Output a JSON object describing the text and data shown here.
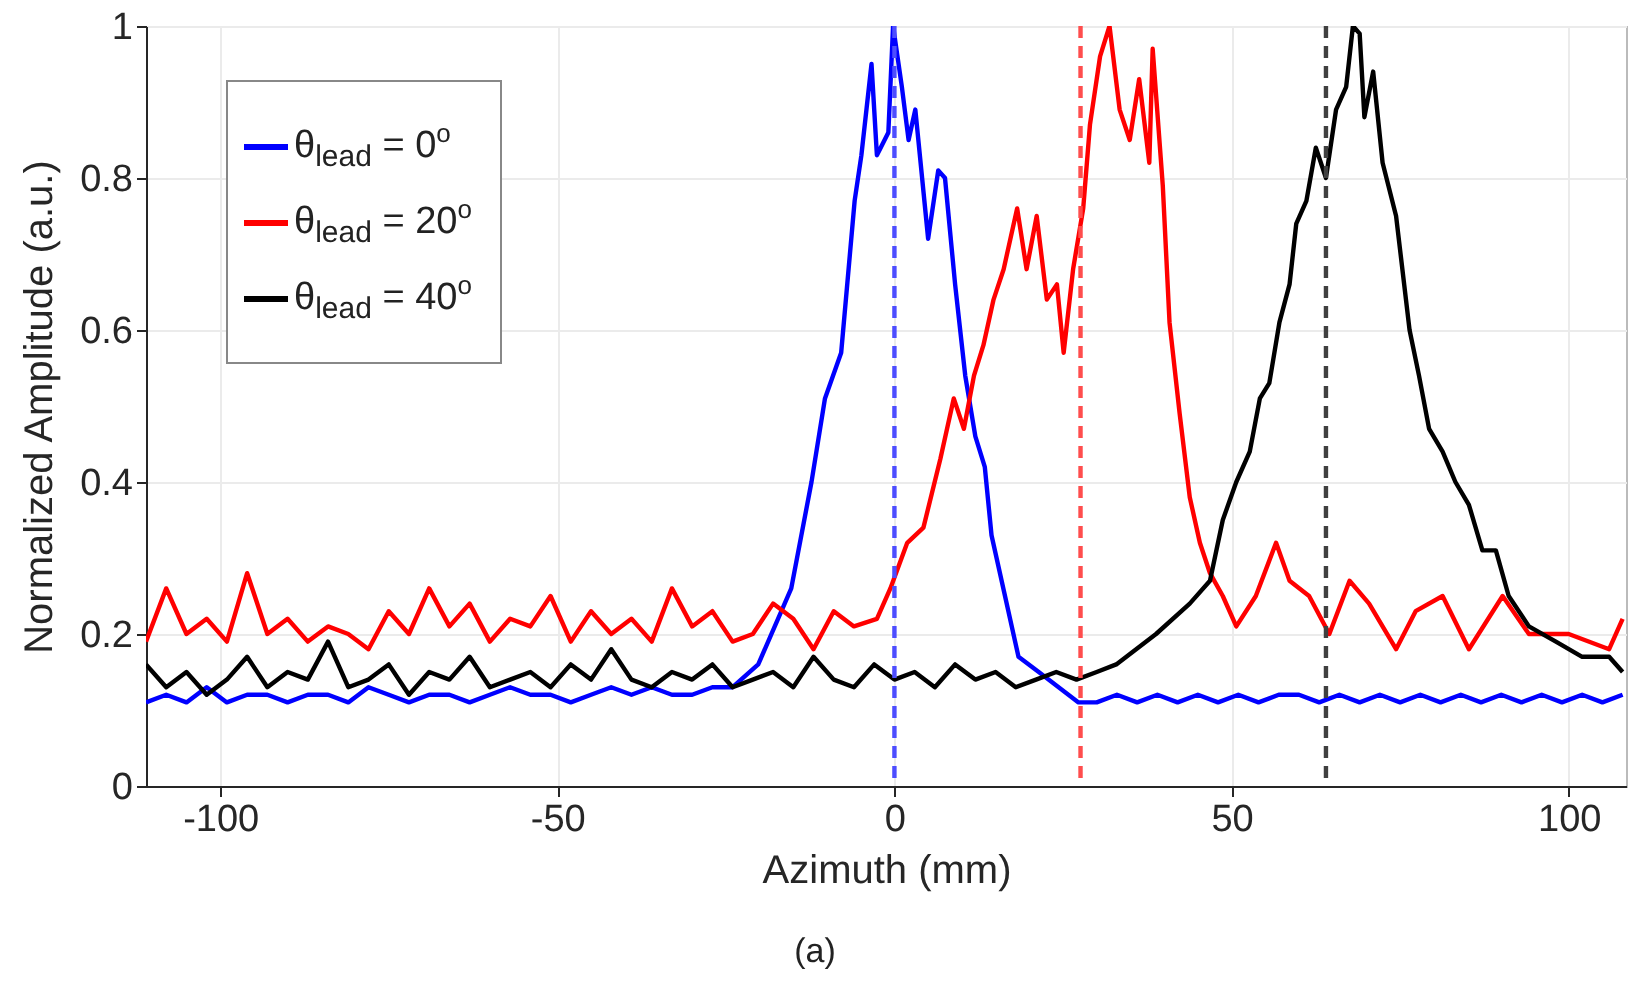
{
  "chart_data": {
    "type": "line",
    "xlabel": "Azimuth (mm)",
    "ylabel": "Normalized Amplitude (a.u.)",
    "annotations": [
      "(a)"
    ],
    "xlim": [
      -111,
      108.5
    ],
    "ylim": [
      0,
      1
    ],
    "xticks": [
      -100,
      -50,
      0,
      50,
      100
    ],
    "yticks": [
      0,
      0.2,
      0.4,
      0.6,
      0.8,
      1
    ],
    "grid": true,
    "legend": "top left",
    "line_style": "solid",
    "series": [
      {
        "name": "θ$_{lead}$ = 0$^{o}$",
        "color": "#0000ff",
        "x": [
          -111,
          -108,
          -105,
          -102,
          -99,
          -96,
          -93,
          -90,
          -87,
          -84,
          -81,
          -78,
          -75,
          -72,
          -69,
          -66,
          -63,
          -60,
          -57,
          -54,
          -51,
          -48,
          -45,
          -42,
          -39,
          -36,
          -33,
          -30,
          -27,
          -24,
          -20.2,
          -15.3,
          -12.3,
          -10.3,
          -7.9,
          -5.9,
          -4.9,
          -3.4,
          -2.6,
          -0.9,
          -0.2,
          1.1,
          2.1,
          3.1,
          5,
          6.5,
          7.5,
          9,
          10.5,
          12,
          13.4,
          14.4,
          16.4,
          18.4,
          21.4,
          27.3,
          30,
          33,
          36,
          39,
          42,
          45,
          48,
          51,
          54,
          57,
          60,
          63,
          66,
          69,
          72,
          75,
          78,
          81,
          84,
          87,
          90,
          93,
          96,
          99,
          102,
          105,
          108
        ],
        "values": [
          0.11,
          0.12,
          0.11,
          0.13,
          0.11,
          0.12,
          0.12,
          0.11,
          0.12,
          0.12,
          0.11,
          0.13,
          0.12,
          0.11,
          0.12,
          0.12,
          0.11,
          0.12,
          0.13,
          0.12,
          0.12,
          0.11,
          0.12,
          0.13,
          0.12,
          0.13,
          0.12,
          0.12,
          0.13,
          0.13,
          0.16,
          0.26,
          0.4,
          0.51,
          0.57,
          0.77,
          0.83,
          0.95,
          0.83,
          0.86,
          1,
          0.92,
          0.85,
          0.89,
          0.72,
          0.81,
          0.8,
          0.66,
          0.54,
          0.46,
          0.42,
          0.33,
          0.25,
          0.17,
          0.15,
          0.11,
          0.11,
          0.12,
          0.11,
          0.12,
          0.11,
          0.12,
          0.11,
          0.12,
          0.11,
          0.12,
          0.12,
          0.11,
          0.12,
          0.11,
          0.12,
          0.11,
          0.12,
          0.11,
          0.12,
          0.11,
          0.12,
          0.11,
          0.12,
          0.11,
          0.12,
          0.11,
          0.12
        ]
      },
      {
        "name": "θ$_{lead}$ = 20$^{o}$",
        "color": "#ff0000",
        "x": [
          -111,
          -108,
          -105,
          -102,
          -99,
          -96,
          -93,
          -90,
          -87,
          -84,
          -81,
          -78,
          -75,
          -72,
          -69,
          -66,
          -63,
          -60,
          -57,
          -54,
          -51,
          -48,
          -45,
          -42,
          -39,
          -36,
          -33,
          -30,
          -27,
          -24,
          -21,
          -18,
          -15,
          -12,
          -9,
          -6,
          -2.6,
          -0.6,
          1.9,
          4.3,
          6.8,
          8.8,
          10.3,
          11.8,
          13.2,
          14.7,
          16.2,
          18.2,
          19.6,
          21.1,
          22.6,
          24.1,
          25.1,
          26.5,
          28,
          29,
          30.5,
          31.9,
          33.4,
          34.9,
          36.3,
          37.8,
          38.3,
          39.8,
          40.8,
          42.3,
          43.8,
          45.3,
          46.8,
          48.7,
          50.7,
          53.6,
          56.6,
          58.6,
          61.5,
          64.5,
          67.5,
          70.4,
          74.4,
          77.3,
          81.3,
          85.2,
          90.2,
          94.1,
          100,
          106,
          108
        ],
        "values": [
          0.19,
          0.26,
          0.2,
          0.22,
          0.19,
          0.28,
          0.2,
          0.22,
          0.19,
          0.21,
          0.2,
          0.18,
          0.23,
          0.2,
          0.26,
          0.21,
          0.24,
          0.19,
          0.22,
          0.21,
          0.25,
          0.19,
          0.23,
          0.2,
          0.22,
          0.19,
          0.26,
          0.21,
          0.23,
          0.19,
          0.2,
          0.24,
          0.22,
          0.18,
          0.23,
          0.21,
          0.22,
          0.26,
          0.32,
          0.34,
          0.43,
          0.51,
          0.47,
          0.54,
          0.58,
          0.64,
          0.68,
          0.76,
          0.68,
          0.75,
          0.64,
          0.66,
          0.57,
          0.68,
          0.76,
          0.87,
          0.96,
          1,
          0.89,
          0.85,
          0.93,
          0.82,
          0.97,
          0.79,
          0.61,
          0.49,
          0.38,
          0.32,
          0.28,
          0.25,
          0.21,
          0.25,
          0.32,
          0.27,
          0.25,
          0.2,
          0.27,
          0.24,
          0.18,
          0.23,
          0.25,
          0.18,
          0.25,
          0.2,
          0.2,
          0.18,
          0.22
        ]
      },
      {
        "name": "θ$_{lead}$ = 40$^{o}$",
        "color": "#000000",
        "x": [
          -111,
          -108,
          -105,
          -102,
          -99,
          -96,
          -93,
          -90,
          -87,
          -84,
          -81,
          -78,
          -75,
          -72,
          -69,
          -66,
          -63,
          -60,
          -57,
          -54,
          -51,
          -48,
          -45,
          -42,
          -39,
          -36,
          -33,
          -30,
          -27,
          -24,
          -21,
          -18,
          -15,
          -12,
          -9,
          -6,
          -3,
          0,
          3,
          6,
          9,
          12,
          15,
          18,
          21,
          24,
          27,
          30,
          32.9,
          38.8,
          43.8,
          46.8,
          48.7,
          50.7,
          52.7,
          54.2,
          55.6,
          57.1,
          58.6,
          59.6,
          61.1,
          62.5,
          64,
          65.5,
          67,
          68,
          69,
          69.7,
          71,
          72.4,
          74.4,
          76.4,
          77.8,
          79.3,
          81.3,
          83.2,
          85.2,
          87.2,
          89.2,
          91.1,
          94.1,
          98.1,
          102,
          106,
          108
        ],
        "values": [
          0.16,
          0.13,
          0.15,
          0.12,
          0.14,
          0.17,
          0.13,
          0.15,
          0.14,
          0.19,
          0.13,
          0.14,
          0.16,
          0.12,
          0.15,
          0.14,
          0.17,
          0.13,
          0.14,
          0.15,
          0.13,
          0.16,
          0.14,
          0.18,
          0.14,
          0.13,
          0.15,
          0.14,
          0.16,
          0.13,
          0.14,
          0.15,
          0.13,
          0.17,
          0.14,
          0.13,
          0.16,
          0.14,
          0.15,
          0.13,
          0.16,
          0.14,
          0.15,
          0.13,
          0.14,
          0.15,
          0.14,
          0.15,
          0.16,
          0.2,
          0.24,
          0.27,
          0.35,
          0.4,
          0.44,
          0.51,
          0.53,
          0.61,
          0.66,
          0.74,
          0.77,
          0.84,
          0.8,
          0.89,
          0.92,
          1,
          0.99,
          0.88,
          0.94,
          0.82,
          0.75,
          0.6,
          0.54,
          0.47,
          0.44,
          0.4,
          0.37,
          0.31,
          0.31,
          0.25,
          0.21,
          0.19,
          0.17,
          0.17,
          0.15
        ]
      }
    ],
    "ref_lines": [
      {
        "axis": "x",
        "value": 0,
        "color": "#4d4dff",
        "line_style": "dashed"
      },
      {
        "axis": "x",
        "value": 27.6,
        "color": "#ff4d4d",
        "line_style": "dashed"
      },
      {
        "axis": "x",
        "value": 64,
        "color": "#404040",
        "line_style": "dashed"
      }
    ]
  }
}
